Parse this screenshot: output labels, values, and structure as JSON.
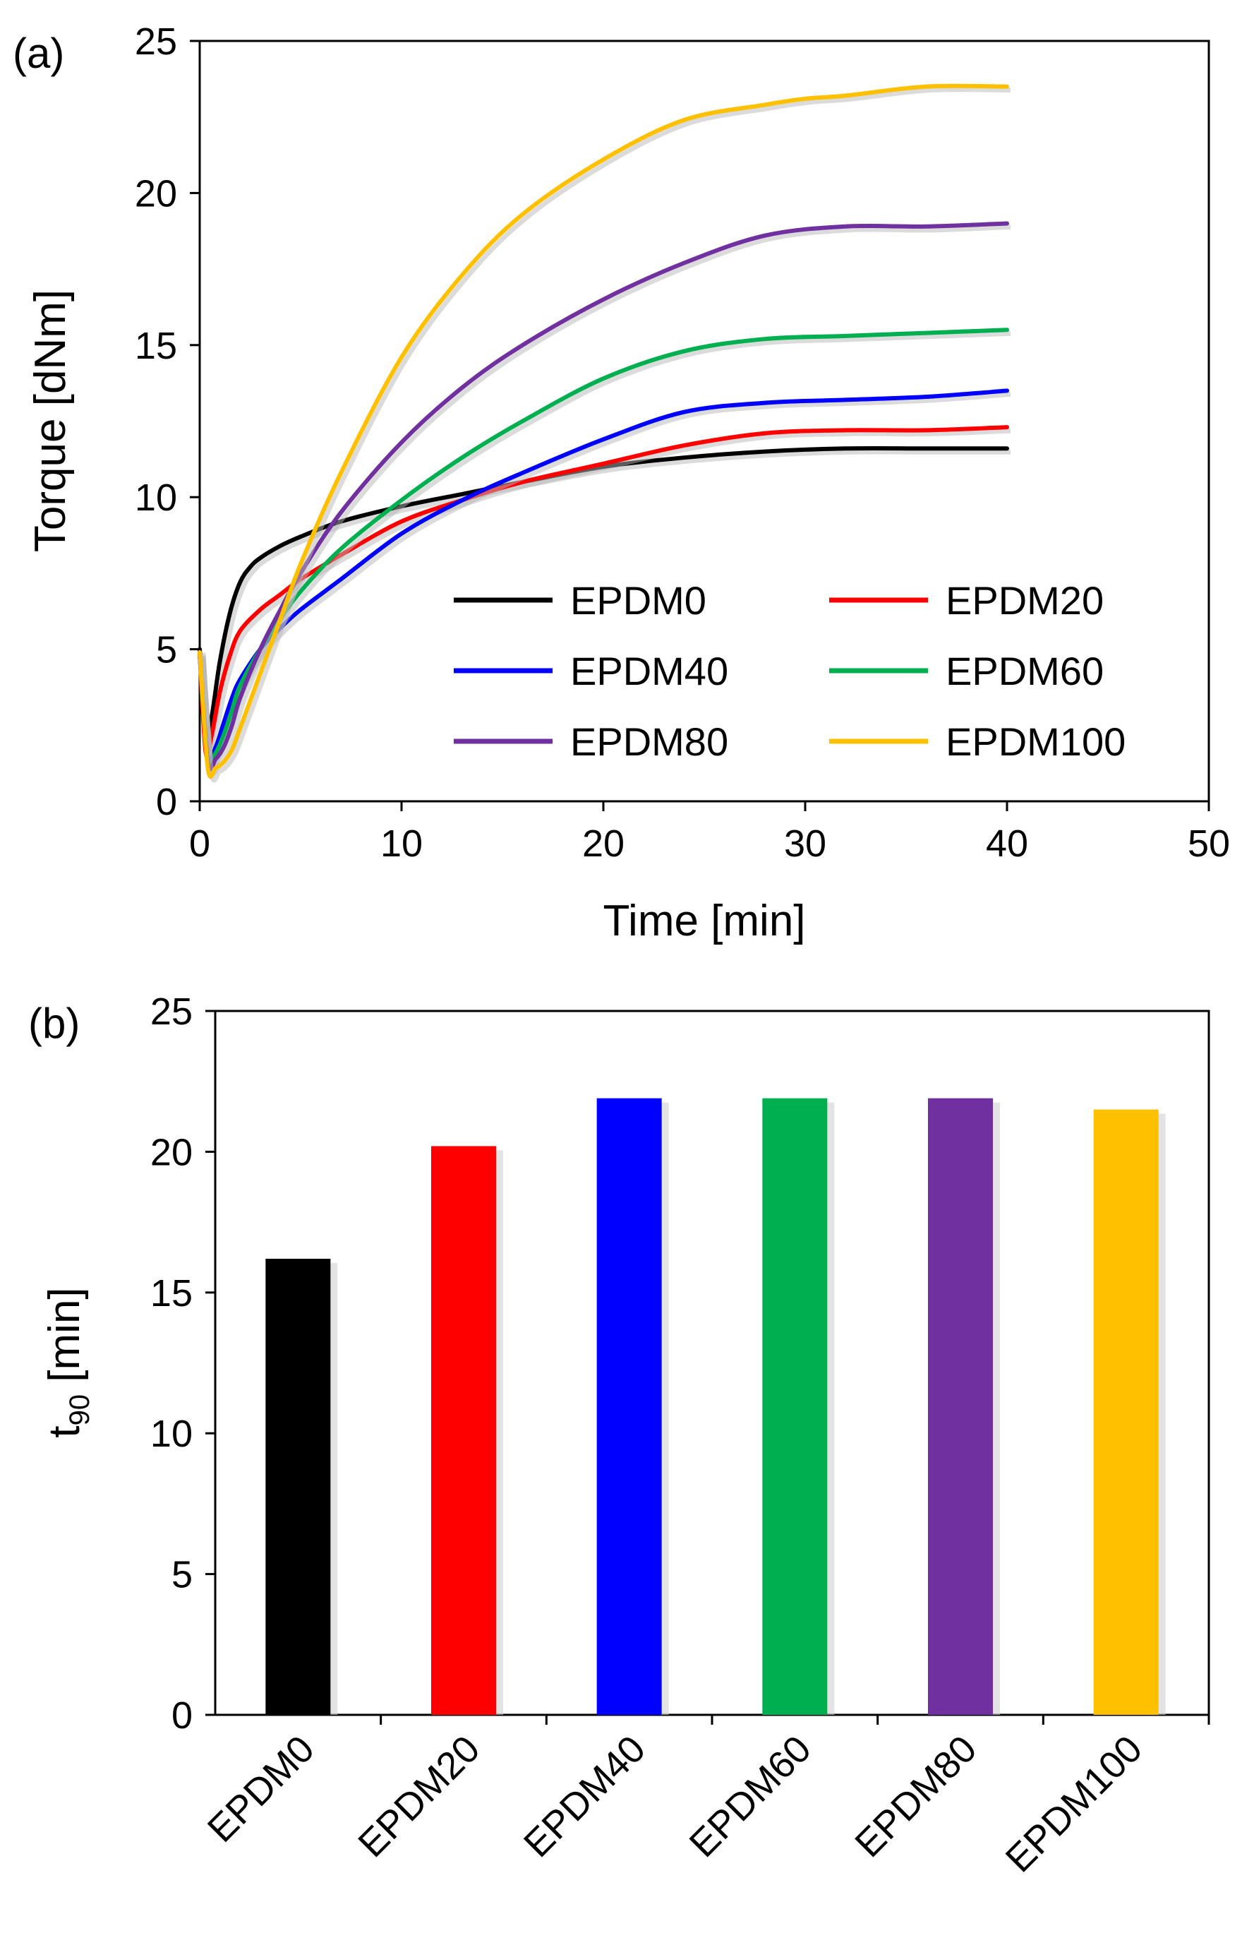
{
  "chart_data": [
    {
      "panel": "(a)",
      "type": "line",
      "xlabel": "Time [min]",
      "ylabel": "Torque [dNm]",
      "xlim": [
        0,
        50
      ],
      "ylim": [
        0,
        25
      ],
      "xticks": [
        "0",
        "10",
        "20",
        "30",
        "40",
        "50"
      ],
      "yticks": [
        "0",
        "5",
        "10",
        "15",
        "20",
        "25"
      ],
      "legend": "lower-right, 2 columns",
      "series": [
        {
          "name": "EPDM0",
          "color": "#000000",
          "x": [
            0,
            0.3,
            0.6,
            1,
            1.5,
            2,
            2.5,
            3,
            4,
            5,
            7,
            10,
            13,
            16,
            20,
            24,
            28,
            32,
            36,
            40
          ],
          "y": [
            5.0,
            2.0,
            2.8,
            4.6,
            6.2,
            7.2,
            7.7,
            8.0,
            8.4,
            8.7,
            9.2,
            9.7,
            10.1,
            10.5,
            11.0,
            11.3,
            11.5,
            11.6,
            11.6,
            11.6
          ]
        },
        {
          "name": "EPDM20",
          "color": "#ff0000",
          "x": [
            0,
            0.3,
            0.6,
            1,
            1.5,
            2,
            3,
            4,
            5,
            7,
            10,
            13,
            16,
            20,
            24,
            28,
            32,
            36,
            40
          ],
          "y": [
            4.9,
            1.6,
            2.2,
            3.6,
            4.8,
            5.6,
            6.3,
            6.8,
            7.3,
            8.1,
            9.2,
            9.9,
            10.5,
            11.1,
            11.7,
            12.1,
            12.2,
            12.2,
            12.3
          ]
        },
        {
          "name": "EPDM40",
          "color": "#0000ff",
          "x": [
            0,
            0.4,
            0.8,
            1.2,
            1.6,
            2,
            3,
            4,
            5,
            7,
            10,
            13,
            16,
            20,
            24,
            28,
            32,
            36,
            40
          ],
          "y": [
            4.8,
            1.5,
            1.8,
            2.6,
            3.4,
            4.0,
            5.0,
            5.7,
            6.3,
            7.3,
            8.8,
            9.9,
            10.8,
            11.9,
            12.8,
            13.1,
            13.2,
            13.3,
            13.5
          ]
        },
        {
          "name": "EPDM60",
          "color": "#00b050",
          "x": [
            0,
            0.4,
            0.8,
            1.2,
            1.6,
            2,
            3,
            4,
            5,
            7,
            10,
            13,
            16,
            20,
            24,
            28,
            32,
            36,
            40
          ],
          "y": [
            4.8,
            1.4,
            1.6,
            2.2,
            3.0,
            3.8,
            5.0,
            6.0,
            6.9,
            8.3,
            9.9,
            11.3,
            12.5,
            13.9,
            14.8,
            15.2,
            15.3,
            15.4,
            15.5
          ]
        },
        {
          "name": "EPDM80",
          "color": "#7030a0",
          "x": [
            0,
            0.4,
            0.8,
            1.2,
            1.6,
            2,
            3,
            4,
            5,
            7,
            10,
            13,
            16,
            20,
            24,
            28,
            32,
            36,
            40
          ],
          "y": [
            4.8,
            1.3,
            1.4,
            1.8,
            2.5,
            3.4,
            5.0,
            6.3,
            7.5,
            9.5,
            11.8,
            13.6,
            15.0,
            16.5,
            17.7,
            18.6,
            18.9,
            18.9,
            19.0
          ]
        },
        {
          "name": "EPDM100",
          "color": "#ffc000",
          "x": [
            0,
            0.4,
            0.8,
            1.2,
            1.6,
            2,
            3,
            4,
            5,
            7,
            10,
            13,
            16,
            20,
            24,
            28,
            30,
            32,
            36,
            40
          ],
          "y": [
            4.9,
            1.1,
            1.1,
            1.3,
            1.7,
            2.4,
            4.2,
            6.0,
            7.8,
            10.8,
            14.6,
            17.3,
            19.3,
            21.1,
            22.4,
            22.9,
            23.1,
            23.2,
            23.5,
            23.5
          ]
        }
      ]
    },
    {
      "panel": "(b)",
      "type": "bar",
      "ylabel": "t",
      "ylabel_subscript": "90",
      "ylabel_unit": " [min]",
      "ylim": [
        0,
        25
      ],
      "yticks": [
        "0",
        "5",
        "10",
        "15",
        "20",
        "25"
      ],
      "categories": [
        "EPDM0",
        "EPDM20",
        "EPDM40",
        "EPDM60",
        "EPDM80",
        "EPDM100"
      ],
      "values": [
        16.2,
        20.2,
        21.9,
        21.9,
        21.9,
        21.5
      ],
      "colors": [
        "#000000",
        "#ff0000",
        "#0000ff",
        "#00b050",
        "#7030a0",
        "#ffc000"
      ]
    }
  ]
}
